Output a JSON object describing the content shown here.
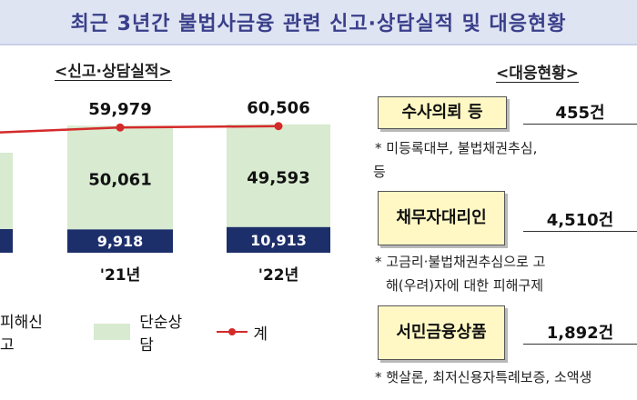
{
  "header": {
    "title": "최근 3년간 불법사금융 관련 신고·상담실적 및 대응현황"
  },
  "left_section": {
    "title": "<신고·상담실적>"
  },
  "right_section": {
    "title": "<대응현황>"
  },
  "colors": {
    "navy": "#1d2f6b",
    "green": "#d8ead0",
    "red": "#d42a2a",
    "banner": "#dfe4f3",
    "box": "#fff8c5"
  },
  "legend": {
    "damage_report": "피해신고",
    "simple_consult": "단순상담",
    "total": "계"
  },
  "chart_data": {
    "type": "bar",
    "categories": [
      "",
      "'21년",
      "'22년"
    ],
    "series": [
      {
        "name": "피해신고",
        "values": [
          null,
          9918,
          10913
        ]
      },
      {
        "name": "단순상담",
        "values": [
          null,
          50061,
          49593
        ]
      }
    ],
    "line_series": {
      "name": "계",
      "values": [
        null,
        59979,
        60506
      ]
    },
    "data_labels": {
      "damage_report": [
        "",
        "9,918",
        "10,913"
      ],
      "simple_consult": [
        "",
        "50,061",
        "49,593"
      ],
      "total": [
        "",
        "59,979",
        "60,506"
      ]
    },
    "title": "",
    "xlabel": "",
    "ylabel": "",
    "stacked": true,
    "grid": false,
    "legend": "bottom-left"
  },
  "response": [
    {
      "label": "수사의뢰 등",
      "value": "455건",
      "notes": [
        "*   미등록대부,  불법채권추심,",
        "등"
      ]
    },
    {
      "label": "채무자대리인",
      "value": "4,510건",
      "notes": [
        "* 고금리·불법채권추심으로  고",
        "해(우려)자에  대한  피해구제"
      ]
    },
    {
      "label": "서민금융상품",
      "value": "1,892건",
      "notes": [
        "*  햇살론, 최저신용자특례보증, 소액생"
      ]
    }
  ]
}
